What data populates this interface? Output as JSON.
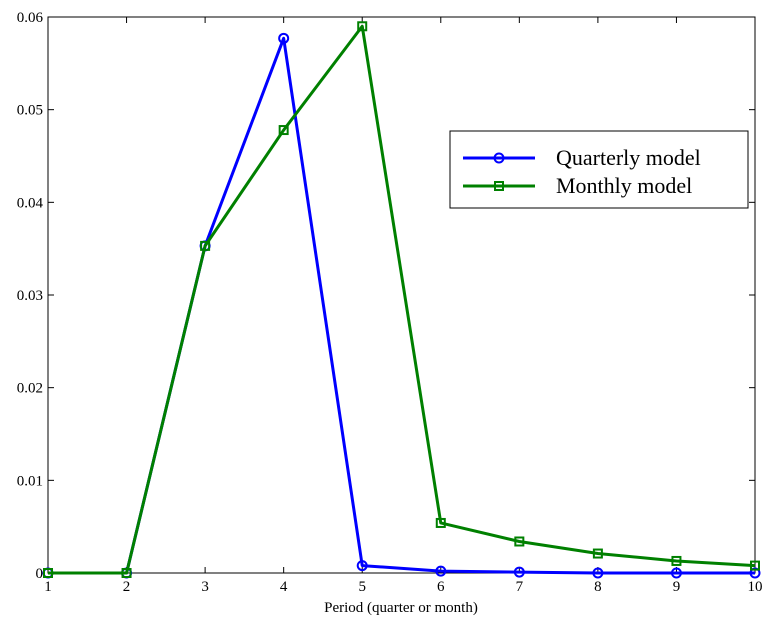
{
  "chart_data": {
    "type": "line",
    "title": "",
    "xlabel": "Period (quarter or month)",
    "ylabel": "",
    "xlim": [
      1,
      10
    ],
    "ylim": [
      0,
      0.06
    ],
    "xticks": [
      1,
      2,
      3,
      4,
      5,
      6,
      7,
      8,
      9,
      10
    ],
    "xtick_labels": [
      "1",
      "2",
      "3",
      "4",
      "5",
      "6",
      "7",
      "8",
      "9",
      "10"
    ],
    "yticks": [
      0,
      0.01,
      0.02,
      0.03,
      0.04,
      0.05,
      0.06
    ],
    "ytick_labels": [
      "0",
      "0.01",
      "0.02",
      "0.03",
      "0.04",
      "0.05",
      "0.06"
    ],
    "grid": false,
    "legend_position": "right",
    "x": [
      1,
      2,
      3,
      4,
      5,
      6,
      7,
      8,
      9,
      10
    ],
    "series": [
      {
        "name": "Quarterly model",
        "color": "#0000ff",
        "marker": "circle",
        "values": [
          0,
          0,
          0.0353,
          0.0577,
          0.0008,
          0.0002,
          0.0001,
          0.0,
          0.0,
          0.0
        ]
      },
      {
        "name": "Monthly model",
        "color": "#008000",
        "marker": "square",
        "values": [
          0,
          0,
          0.0353,
          0.0478,
          0.059,
          0.0054,
          0.0034,
          0.0021,
          0.0013,
          0.0008
        ]
      }
    ]
  }
}
